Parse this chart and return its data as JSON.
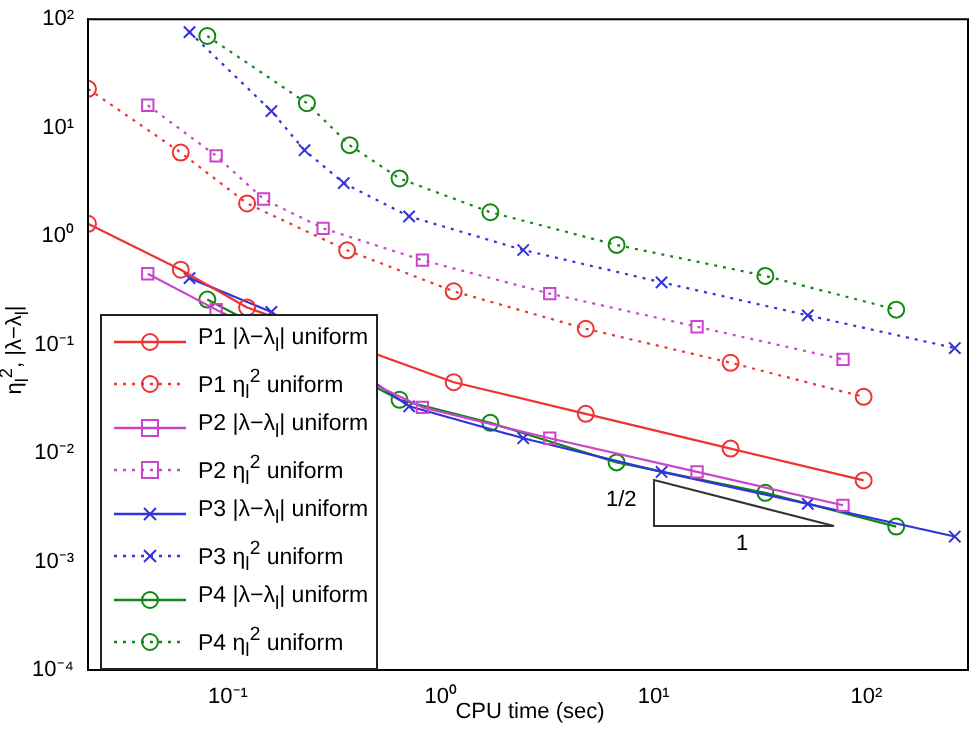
{
  "chart_data": {
    "type": "line",
    "xlabel": "CPU time (sec)",
    "ylabel": "η$_{l}$$^{2}$, |λ−λ$_{l}$|",
    "log": "xy",
    "grid": false,
    "legend": "bottom left",
    "xlim": [
      0.022,
      300
    ],
    "ylim": [
      0.0001,
      100
    ],
    "xticks": [
      {
        "value": 0.1,
        "label": "10⁻¹"
      },
      {
        "value": 1,
        "label": "10⁰"
      },
      {
        "value": 10,
        "label": "10¹"
      },
      {
        "value": 100,
        "label": "10²"
      }
    ],
    "yticks": [
      {
        "value": 0.0001,
        "label": "10⁻⁴"
      },
      {
        "value": 0.001,
        "label": "10⁻³"
      },
      {
        "value": 0.01,
        "label": "10⁻²"
      },
      {
        "value": 0.1,
        "label": "10⁻¹"
      },
      {
        "value": 1,
        "label": "10⁰"
      },
      {
        "value": 10,
        "label": "10¹"
      },
      {
        "value": 100,
        "label": "10²"
      }
    ],
    "series": [
      {
        "name": "P1 |λ−λ$_{l}$| uniform",
        "color": "#ee3333",
        "marker": "circle",
        "line_style": "solid",
        "x": [
          0.022,
          0.06,
          0.123,
          0.363,
          1.15,
          4.8,
          23,
          97
        ],
        "values": [
          1.3,
          0.49,
          0.22,
          null,
          0.045,
          0.023,
          0.011,
          0.0056
        ]
      },
      {
        "name": "P1 η$_{l}$$^{2}$ uniform",
        "color": "#ee3333",
        "marker": "circle",
        "line_style": "dotted",
        "x": [
          0.022,
          0.06,
          0.123,
          0.363,
          1.15,
          4.8,
          23,
          97
        ],
        "values": [
          22.8,
          5.9,
          2.0,
          0.74,
          0.31,
          0.14,
          0.068,
          0.033
        ]
      },
      {
        "name": "P2 |λ−λ$_{l}$| uniform",
        "color": "#cc44cc",
        "marker": "square",
        "line_style": "solid",
        "x": [
          0.042,
          0.088,
          0.147,
          0.28,
          0.82,
          3.25,
          16,
          77.6
        ],
        "values": [
          0.45,
          0.21,
          null,
          null,
          0.0264,
          0.0137,
          0.0067,
          0.0033
        ]
      },
      {
        "name": "P2 η$_{l}$$^{2}$ uniform",
        "color": "#cc44cc",
        "marker": "square",
        "line_style": "dotted",
        "x": [
          0.042,
          0.088,
          0.147,
          0.28,
          0.82,
          3.25,
          16,
          77.6
        ],
        "values": [
          16.1,
          5.5,
          2.2,
          1.18,
          0.6,
          0.295,
          0.146,
          0.073
        ]
      },
      {
        "name": "P3 |λ−λ$_{l}$| uniform",
        "color": "#3333dd",
        "marker": "cross",
        "line_style": "solid",
        "x": [
          0.066,
          0.16,
          0.229,
          0.35,
          0.71,
          2.44,
          10.9,
          53,
          260
        ],
        "values": [
          0.41,
          0.2,
          null,
          null,
          0.027,
          0.0137,
          0.0067,
          0.0034,
          0.0017
        ]
      },
      {
        "name": "P3 η$_{l}$$^{2}$ uniform",
        "color": "#3333dd",
        "marker": "cross",
        "line_style": "dotted",
        "x": [
          0.066,
          0.16,
          0.229,
          0.35,
          0.71,
          2.44,
          10.9,
          53,
          260
        ],
        "values": [
          76,
          14.2,
          6.2,
          3.08,
          1.52,
          0.745,
          0.375,
          0.186,
          0.093
        ]
      },
      {
        "name": "P4 |λ−λ$_{l}$| uniform",
        "color": "#118811",
        "marker": "circle",
        "line_style": "solid",
        "x": [
          0.08,
          0.235,
          0.373,
          0.64,
          1.71,
          6.7,
          33.5,
          138
        ],
        "values": [
          0.26,
          null,
          null,
          0.031,
          0.019,
          0.0082,
          0.0043,
          0.0021
        ]
      },
      {
        "name": "P4 η$_{l}$$^{2}$ uniform",
        "color": "#118811",
        "marker": "circle",
        "line_style": "dotted",
        "x": [
          0.08,
          0.235,
          0.373,
          0.64,
          1.71,
          6.7,
          33.5,
          138
        ],
        "values": [
          70,
          16.8,
          6.9,
          3.4,
          1.66,
          0.83,
          0.43,
          0.21
        ]
      }
    ],
    "annotations": [
      "1/2",
      "1"
    ]
  }
}
